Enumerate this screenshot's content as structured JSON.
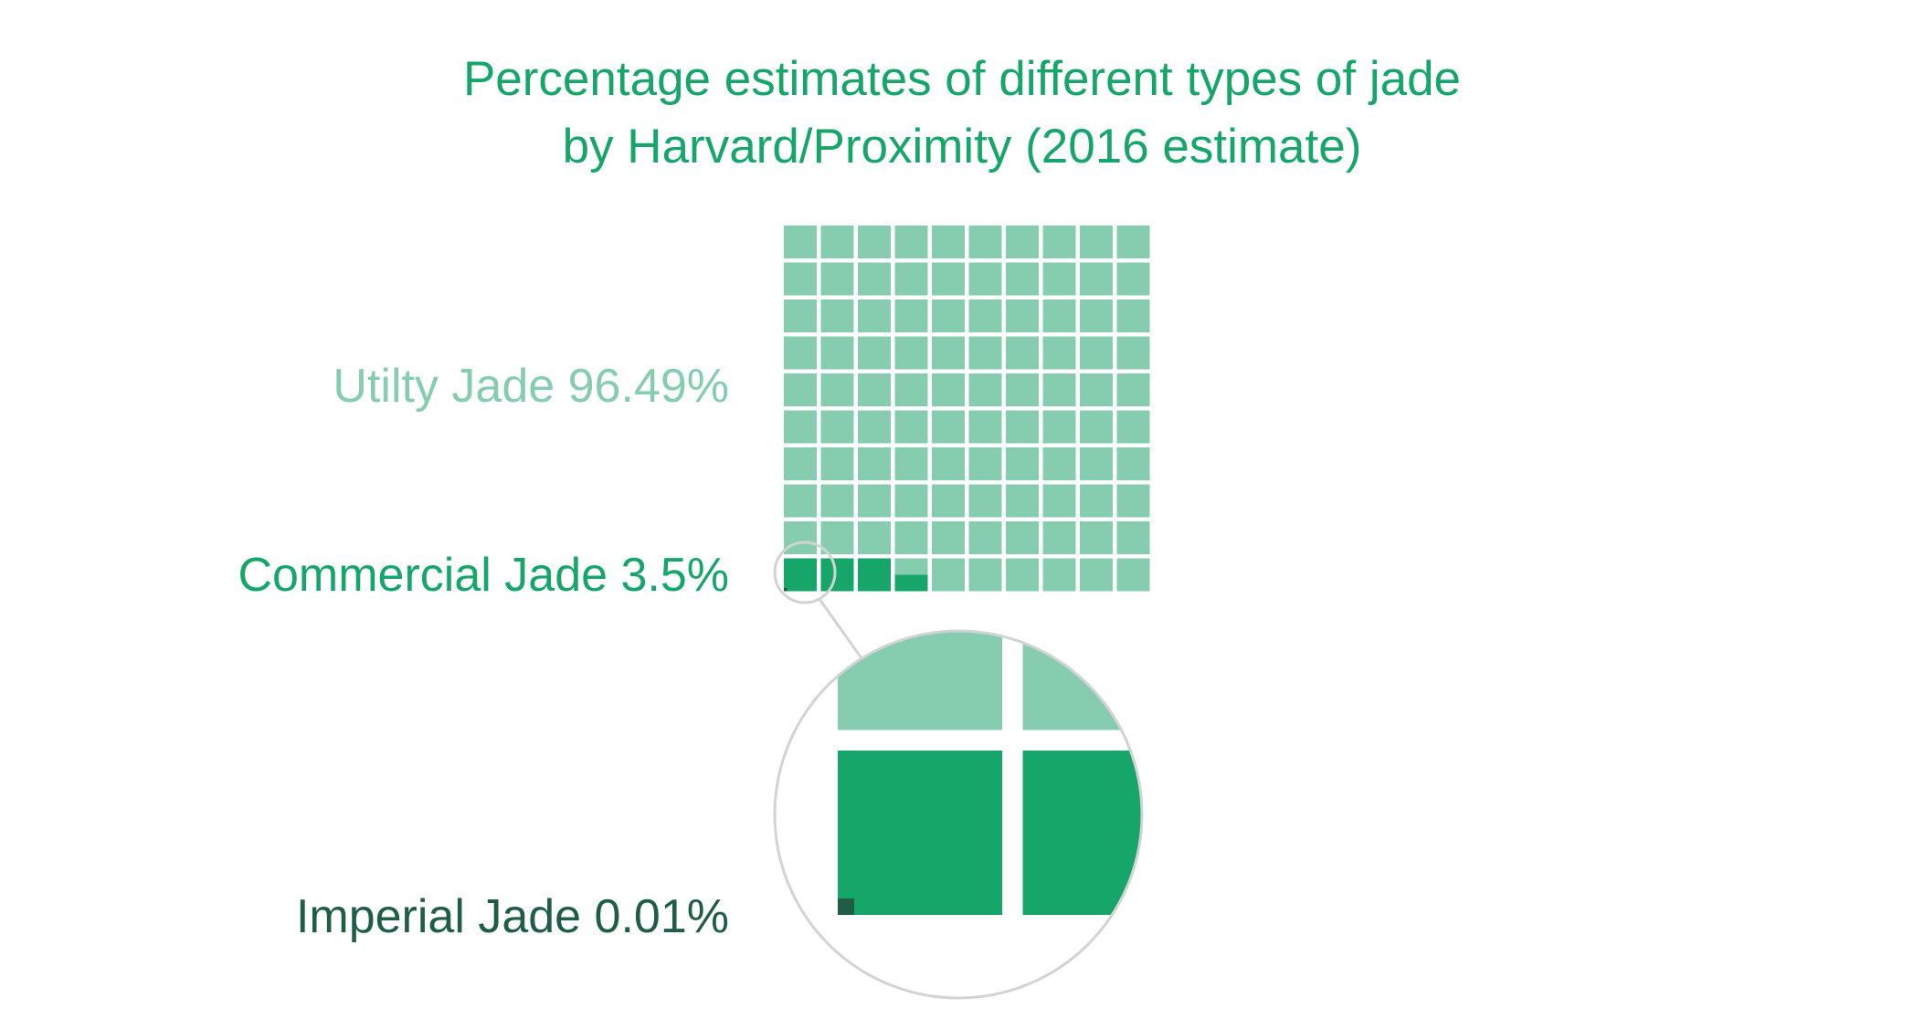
{
  "colors": {
    "utility": "#86cdb0",
    "commercial": "#17a66a",
    "imperial": "#1f5e45",
    "title": "#17a66a",
    "lens_border": "#d3d3d3"
  },
  "chart_data": {
    "type": "waffle",
    "title_lines": [
      "Percentage estimates of different types of jade",
      "by Harvard/Proximity (2016 estimate)"
    ],
    "grid": {
      "rows": 10,
      "cols": 10,
      "units_per_square": 1
    },
    "categories": [
      {
        "name": "Utilty Jade",
        "value": 96.49,
        "unit": "%",
        "label": "Utilty Jade 96.49%",
        "color": "#86cdb0"
      },
      {
        "name": "Commercial Jade",
        "value": 3.5,
        "unit": "%",
        "label": "Commercial Jade 3.5%",
        "color": "#17a66a"
      },
      {
        "name": "Imperial Jade",
        "value": 0.01,
        "unit": "%",
        "label": "Imperial Jade 0.01%",
        "color": "#1f5e45"
      }
    ],
    "magnifier": {
      "shows": "bottom-left corner of the grid",
      "zoom": 5
    }
  }
}
